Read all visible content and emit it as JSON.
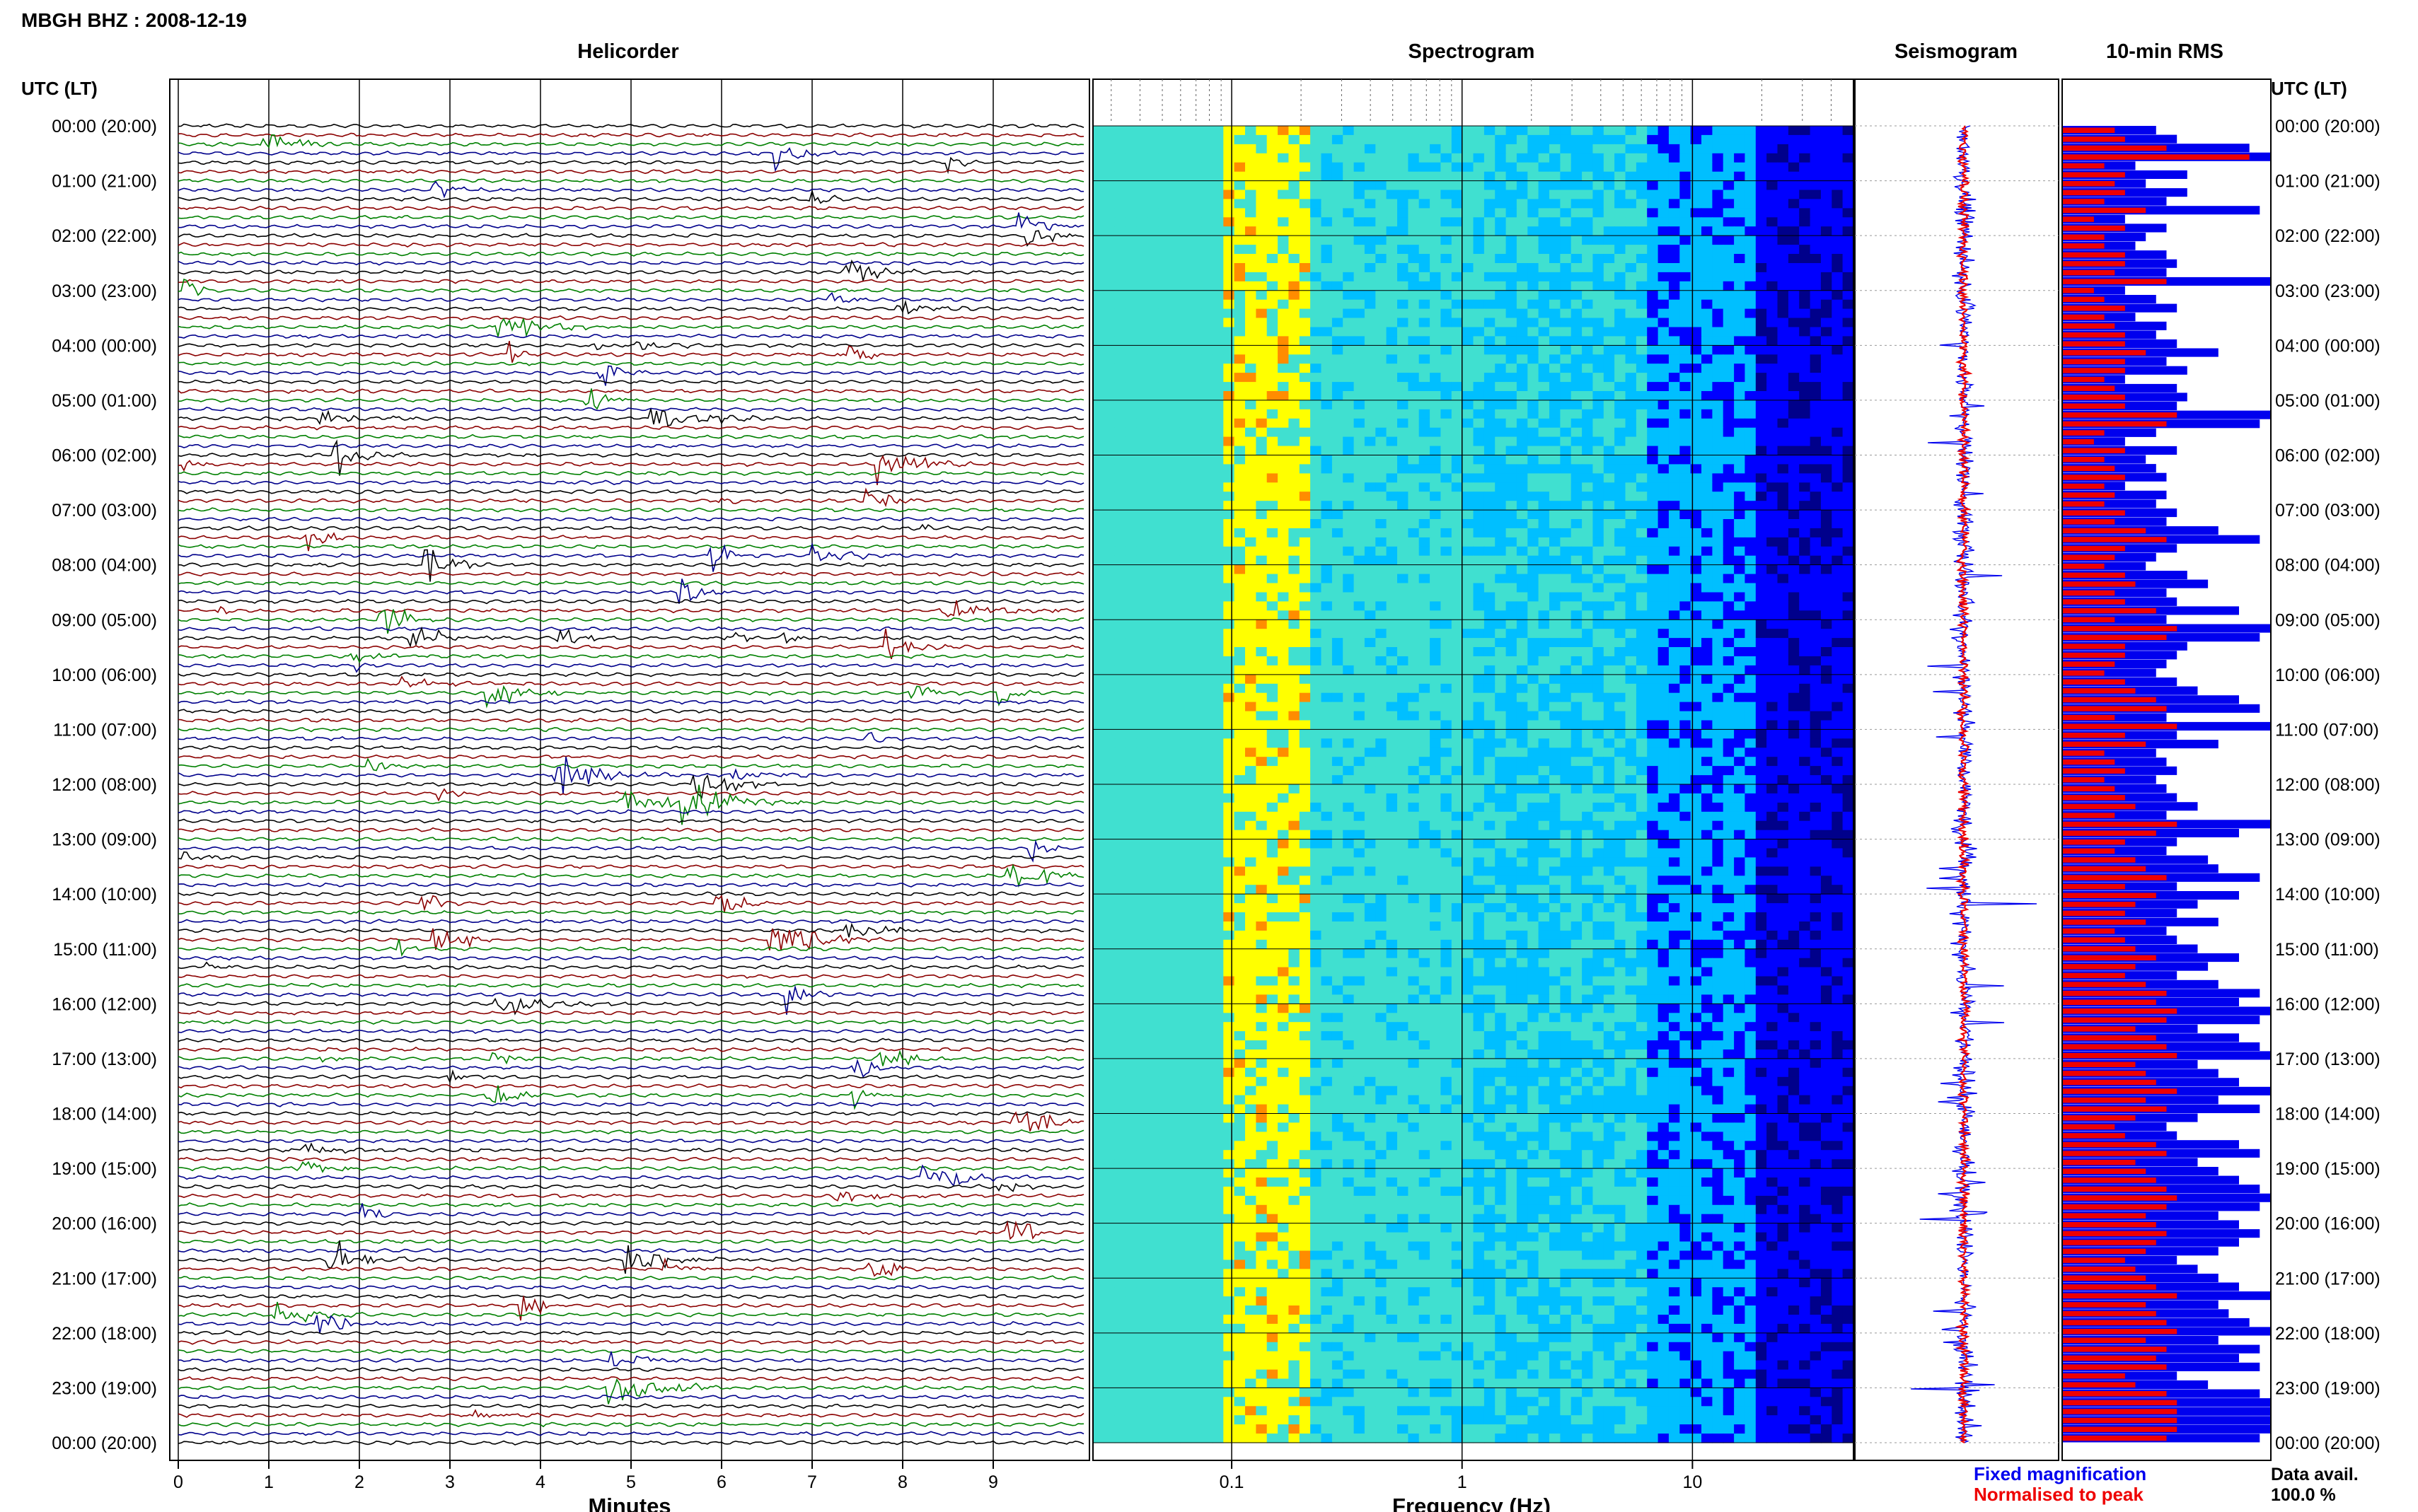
{
  "figure": {
    "station_title": "MBGH BHZ : 2008-12-19",
    "panels": {
      "helicorder": "Helicorder",
      "spectrogram": "Spectrogram",
      "seismogram": "Seismogram",
      "rms": "10-min RMS"
    },
    "time_axis_title_left": "UTC (LT)",
    "time_axis_title_right": "UTC (LT)",
    "legend": {
      "fixed": "Fixed magnification",
      "normalised": "Normalised to peak",
      "fixed_color": "#0000ee",
      "normalised_color": "#ee0000"
    },
    "data_avail": {
      "label": "Data avail.",
      "value": "100.0 %"
    }
  },
  "chart_data": [
    {
      "type": "line",
      "title": "Helicorder",
      "xlabel": "Minutes",
      "ylabel": "UTC (LT)",
      "x_ticks": [
        0,
        1,
        2,
        3,
        4,
        5,
        6,
        7,
        8,
        9
      ],
      "xlim": [
        0,
        10
      ],
      "trace_colors": [
        "#000000",
        "#8b0000",
        "#008000",
        "#00008b"
      ],
      "row_labels": [
        "00:00 (20:00)",
        "01:00 (21:00)",
        "02:00 (22:00)",
        "03:00 (23:00)",
        "04:00 (00:00)",
        "05:00 (01:00)",
        "06:00 (02:00)",
        "07:00 (03:00)",
        "08:00 (04:00)",
        "09:00 (05:00)",
        "10:00 (06:00)",
        "11:00 (07:00)",
        "12:00 (08:00)",
        "13:00 (09:00)",
        "14:00 (10:00)",
        "15:00 (11:00)",
        "16:00 (12:00)",
        "17:00 (13:00)",
        "18:00 (14:00)",
        "19:00 (15:00)",
        "20:00 (16:00)",
        "21:00 (17:00)",
        "22:00 (18:00)",
        "23:00 (19:00)",
        "00:00 (20:00)"
      ]
    },
    {
      "type": "heatmap",
      "title": "Spectrogram",
      "xlabel": "Frequency (Hz)",
      "x_scale": "log",
      "x_ticks": [
        "0.1",
        "1",
        "10"
      ],
      "xlim": [
        0.025,
        50
      ],
      "colormap": [
        "#00008b",
        "#0000ff",
        "#00bfff",
        "#40e0d0",
        "#ffff00",
        "#ff8c00",
        "#ff0000"
      ]
    },
    {
      "type": "line",
      "title": "Seismogram",
      "series": [
        {
          "name": "Fixed magnification",
          "color": "#0000ee"
        },
        {
          "name": "Normalised to peak",
          "color": "#ee0000"
        }
      ]
    },
    {
      "type": "bar",
      "title": "10-min RMS",
      "orientation": "horizontal",
      "series_colors": [
        "#0000ee",
        "#ee0000"
      ],
      "rms_per_10min": [
        0.45,
        0.55,
        0.9,
        1.0,
        0.35,
        0.6,
        0.4,
        0.6,
        0.5,
        0.95,
        0.3,
        0.5,
        0.4,
        0.35,
        0.5,
        0.55,
        0.5,
        1.0,
        0.3,
        0.45,
        0.55,
        0.35,
        0.5,
        0.45,
        0.55,
        0.75,
        0.5,
        0.6,
        0.3,
        0.55,
        0.6,
        0.55,
        1.0,
        0.95,
        0.45,
        0.3,
        0.55,
        0.4,
        0.45,
        0.5,
        0.3,
        0.5,
        0.45,
        0.55,
        0.5,
        0.75,
        0.95,
        0.55,
        0.45,
        0.4,
        0.6,
        0.7,
        0.5,
        0.55,
        0.85,
        0.5,
        1.0,
        0.95,
        0.6,
        0.55,
        0.5,
        0.45,
        0.55,
        0.65,
        0.85,
        0.95,
        0.5,
        1.0,
        0.55,
        0.75,
        0.45,
        0.5,
        0.55,
        0.45,
        0.5,
        0.55,
        0.65,
        0.5,
        1.0,
        0.85,
        0.55,
        0.5,
        0.7,
        0.75,
        0.95,
        0.55,
        0.85,
        0.65,
        0.55,
        0.75,
        0.5,
        0.55,
        0.65,
        0.85,
        0.7,
        0.55,
        0.75,
        0.95,
        0.85,
        1.0,
        0.95,
        0.65,
        0.85,
        0.95,
        1.0,
        0.65,
        0.75,
        0.85,
        1.0,
        0.75,
        0.95,
        0.65,
        0.5,
        0.55,
        0.85,
        0.95,
        0.65,
        0.75,
        0.85,
        0.95,
        1.0,
        0.95,
        0.75,
        0.85,
        0.95,
        0.85,
        0.75,
        0.55,
        0.65,
        0.75,
        0.85,
        1.0,
        0.75,
        0.8,
        0.9,
        1.0,
        0.75,
        0.95,
        0.85,
        0.95,
        0.55,
        0.7,
        0.95,
        1.0,
        1.0,
        1.0,
        1.0,
        0.95
      ],
      "rms_normalised": [
        0.25,
        0.3,
        0.5,
        0.9,
        0.2,
        0.3,
        0.25,
        0.3,
        0.2,
        0.4,
        0.15,
        0.3,
        0.2,
        0.2,
        0.3,
        0.3,
        0.25,
        0.5,
        0.15,
        0.2,
        0.3,
        0.2,
        0.25,
        0.3,
        0.3,
        0.4,
        0.3,
        0.3,
        0.2,
        0.25,
        0.3,
        0.3,
        0.55,
        0.5,
        0.2,
        0.15,
        0.3,
        0.2,
        0.25,
        0.3,
        0.2,
        0.25,
        0.2,
        0.3,
        0.25,
        0.4,
        0.5,
        0.3,
        0.25,
        0.2,
        0.3,
        0.35,
        0.25,
        0.3,
        0.45,
        0.25,
        0.55,
        0.5,
        0.3,
        0.3,
        0.25,
        0.2,
        0.3,
        0.35,
        0.45,
        0.5,
        0.25,
        0.55,
        0.3,
        0.4,
        0.2,
        0.25,
        0.3,
        0.2,
        0.25,
        0.3,
        0.35,
        0.25,
        0.55,
        0.45,
        0.3,
        0.25,
        0.35,
        0.4,
        0.5,
        0.3,
        0.45,
        0.35,
        0.3,
        0.4,
        0.25,
        0.3,
        0.35,
        0.45,
        0.35,
        0.3,
        0.4,
        0.5,
        0.45,
        0.55,
        0.5,
        0.35,
        0.45,
        0.5,
        0.55,
        0.35,
        0.4,
        0.45,
        0.55,
        0.4,
        0.5,
        0.35,
        0.25,
        0.3,
        0.45,
        0.5,
        0.35,
        0.4,
        0.45,
        0.5,
        0.55,
        0.5,
        0.4,
        0.45,
        0.5,
        0.45,
        0.4,
        0.3,
        0.35,
        0.4,
        0.45,
        0.55,
        0.4,
        0.45,
        0.5,
        0.55,
        0.4,
        0.5,
        0.45,
        0.5,
        0.3,
        0.35,
        0.5,
        0.55,
        0.55,
        0.55,
        0.55,
        0.5
      ]
    }
  ]
}
